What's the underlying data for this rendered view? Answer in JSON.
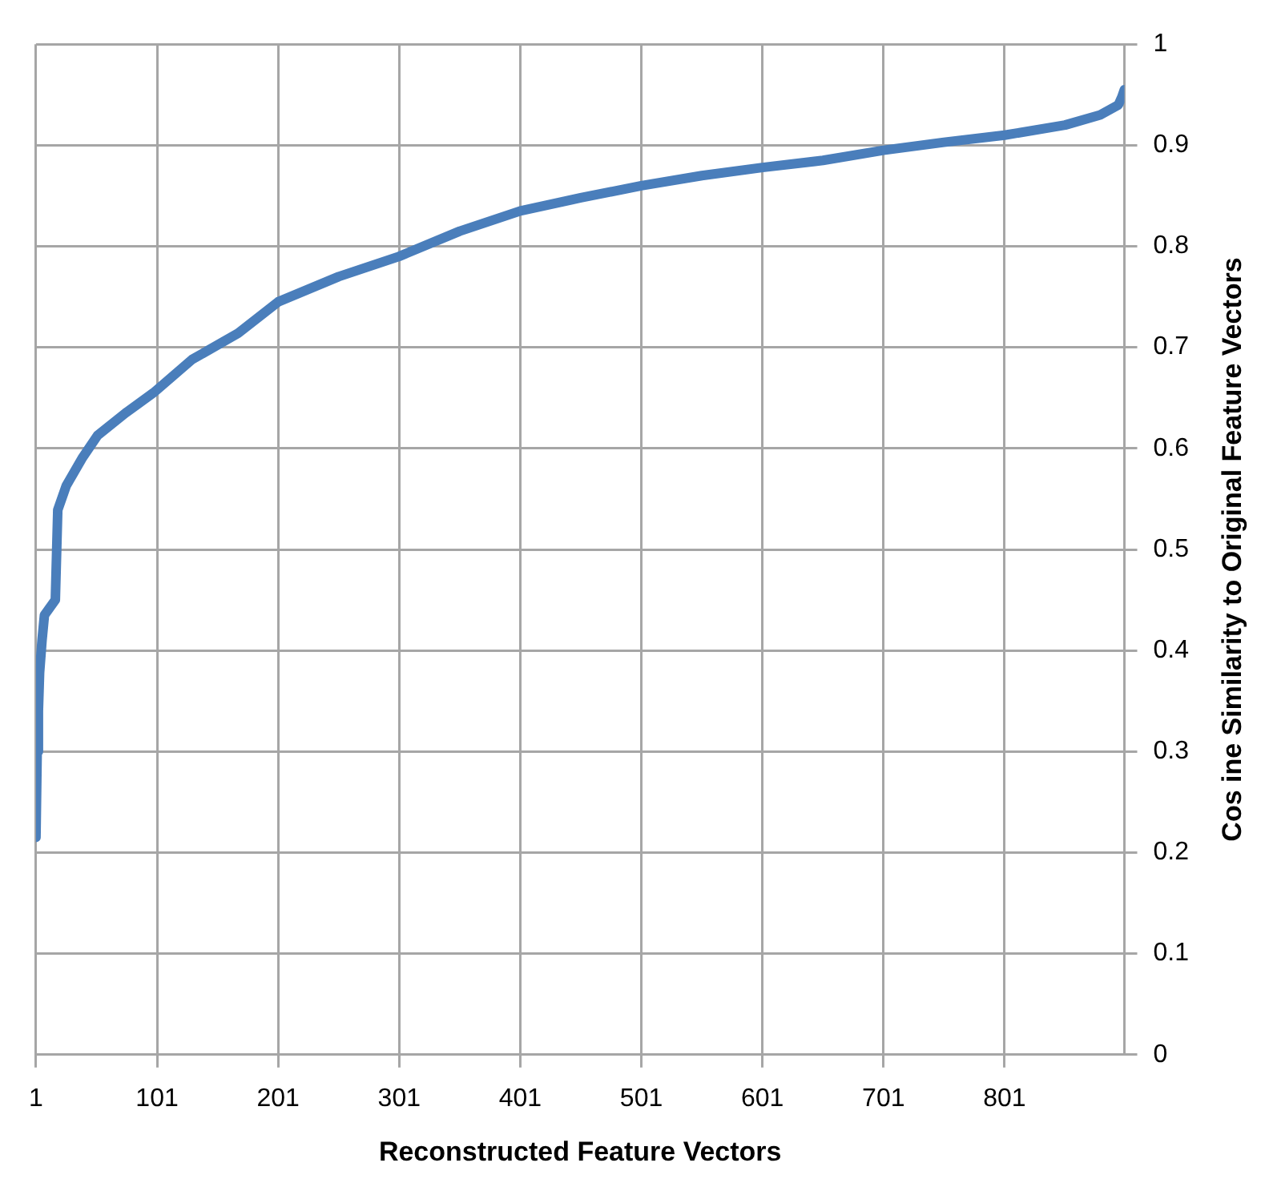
{
  "chart_data": {
    "type": "line",
    "xlabel": "Reconstructed Feature Vectors",
    "ylabel": "Cos ine Similarity to Original Feature Vectors",
    "x": [
      1,
      2,
      3,
      4,
      6,
      8,
      17,
      19,
      26,
      39,
      52,
      75,
      98,
      130,
      168,
      201,
      251,
      301,
      351,
      401,
      451,
      501,
      551,
      601,
      651,
      701,
      751,
      801,
      851,
      880,
      895,
      898,
      900
    ],
    "series": [
      {
        "color": "#4a7ebb",
        "values": [
          0.215,
          0.3,
          0.34,
          0.378,
          0.41,
          0.435,
          0.45,
          0.539,
          0.563,
          0.59,
          0.613,
          0.635,
          0.655,
          0.688,
          0.714,
          0.745,
          0.77,
          0.79,
          0.815,
          0.835,
          0.848,
          0.86,
          0.87,
          0.878,
          0.885,
          0.895,
          0.903,
          0.91,
          0.92,
          0.93,
          0.94,
          0.948,
          0.955
        ]
      }
    ],
    "xlim": [
      1,
      900
    ],
    "xticks": [
      1,
      101,
      201,
      301,
      401,
      501,
      601,
      701,
      801
    ],
    "ylim": [
      0,
      1
    ],
    "yticks": [
      0,
      0.1,
      0.2,
      0.3,
      0.4,
      0.5,
      0.6,
      0.7,
      0.8,
      0.9,
      1
    ],
    "grid": true,
    "legend": false,
    "marker": "none",
    "line_style": "solid"
  }
}
